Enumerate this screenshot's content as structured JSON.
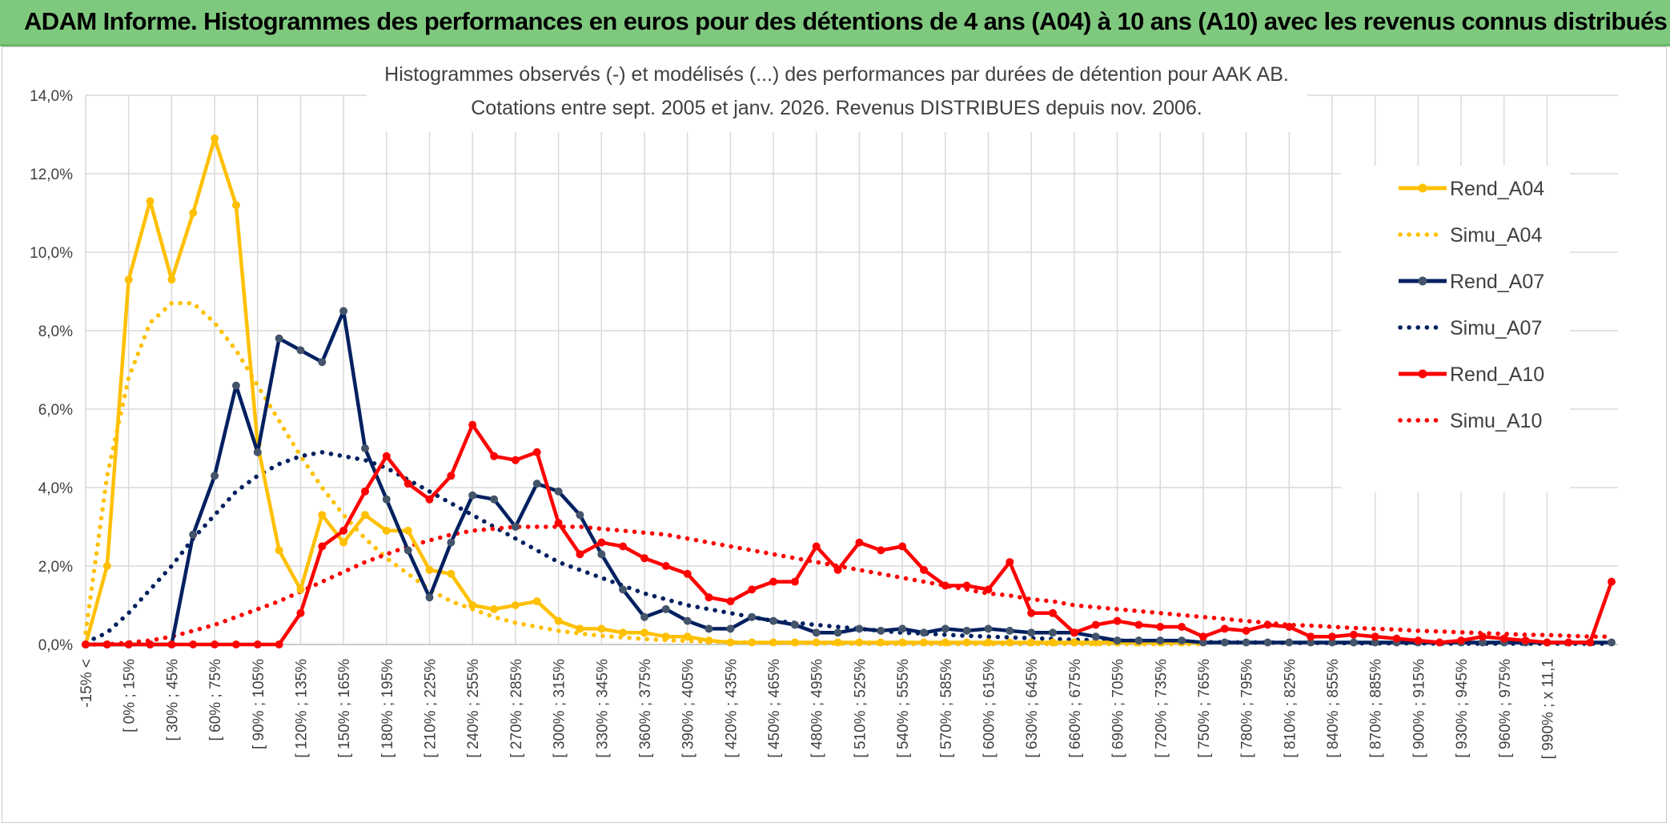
{
  "header": {
    "title": "ADAM Informe. Histogrammes des performances en euros pour des détentions de 4 ans (A04) à 10 ans (A10) avec les revenus connus distribués"
  },
  "chart_data": {
    "type": "line",
    "title_line1": "Histogrammes observés (-) et modélisés (...) des performances par durées de détention pour AAK AB.",
    "title_line2": "Cotations entre sept. 2005 et janv. 2026. Revenus DISTRIBUES depuis nov. 2006.",
    "ylim": [
      0,
      14
    ],
    "yticks": [
      "0,0%",
      "2,0%",
      "4,0%",
      "6,0%",
      "8,0%",
      "10,0%",
      "12,0%",
      "14,0%"
    ],
    "x_count": 72,
    "x_tick_labels": [
      "-15% <",
      "[ 0% ; 15%",
      "[ 30% ; 45%",
      "[ 60% ; 75%",
      "[ 90% ; 105%",
      "[ 120% ; 135%",
      "[ 150% ; 165%",
      "[ 180% ; 195%",
      "[ 210% ; 225%",
      "[ 240% ; 255%",
      "[ 270% ; 285%",
      "[ 300% ; 315%",
      "[ 330% ; 345%",
      "[ 360% ; 375%",
      "[ 390% ; 405%",
      "[ 420% ; 435%",
      "[ 450% ; 465%",
      "[ 480% ; 495%",
      "[ 510% ; 525%",
      "[ 540% ; 555%",
      "[ 570% ; 585%",
      "[ 600% ; 615%",
      "[ 630% ; 645%",
      "[ 660% ; 675%",
      "[ 690% ; 705%",
      "[ 720% ; 735%",
      "[ 750% ; 765%",
      "[ 780% ; 795%",
      "[ 810% ; 825%",
      "[ 840% ; 855%",
      "[ 870% ; 885%",
      "[ 900% ; 915%",
      "[ 930% ; 945%",
      "[ 960% ; 975%",
      "[ 990% ; x 11,1"
    ],
    "legend_position": "right",
    "grid": true,
    "series": [
      {
        "name": "Rend_A04",
        "style": "solid",
        "color": "#ffc000",
        "values": [
          0.0,
          2.0,
          9.3,
          11.3,
          9.3,
          11.0,
          12.9,
          11.2,
          5.1,
          2.4,
          1.4,
          3.3,
          2.6,
          3.3,
          2.9,
          2.9,
          1.9,
          1.8,
          1.0,
          0.9,
          1.0,
          1.1,
          0.6,
          0.4,
          0.4,
          0.3,
          0.3,
          0.2,
          0.2,
          0.1,
          0.05,
          0.05,
          0.05,
          0.05,
          0.05,
          0.05,
          0.05,
          0.05,
          0.05,
          0.05,
          0.05,
          0.05,
          0.05,
          0.05,
          0.05,
          0.05,
          0.05,
          0.05,
          0.05,
          0.05,
          0.05,
          0.05,
          0.05
        ]
      },
      {
        "name": "Simu_A04",
        "style": "dotted",
        "color": "#ffc000",
        "values": [
          0.3,
          4.3,
          6.8,
          8.2,
          8.7,
          8.7,
          8.2,
          7.5,
          6.6,
          5.7,
          4.8,
          4.0,
          3.3,
          2.7,
          2.2,
          1.8,
          1.4,
          1.1,
          0.9,
          0.7,
          0.55,
          0.45,
          0.35,
          0.28,
          0.22,
          0.18,
          0.14,
          0.11,
          0.09,
          0.07,
          0.06,
          0.05,
          0.04,
          0.03,
          0.03,
          0.02,
          0.02,
          0.02,
          0.01,
          0.01,
          0.01,
          0.01,
          0.01,
          0.01,
          0.01,
          0.01,
          0.01,
          0.01,
          0.01,
          0.01,
          0.01,
          0.01,
          0.01
        ]
      },
      {
        "name": "Rend_A07",
        "style": "solid",
        "color": "#002060",
        "values": [
          0.0,
          0.0,
          0.0,
          0.0,
          0.0,
          2.8,
          4.3,
          6.6,
          4.9,
          7.8,
          7.5,
          7.2,
          8.5,
          5.0,
          3.7,
          2.4,
          1.2,
          2.6,
          3.8,
          3.7,
          3.0,
          4.1,
          3.9,
          3.3,
          2.3,
          1.4,
          0.7,
          0.9,
          0.6,
          0.4,
          0.4,
          0.7,
          0.6,
          0.5,
          0.3,
          0.3,
          0.4,
          0.35,
          0.4,
          0.3,
          0.4,
          0.35,
          0.4,
          0.35,
          0.3,
          0.3,
          0.3,
          0.2,
          0.1,
          0.1,
          0.1,
          0.1,
          0.05,
          0.05,
          0.05,
          0.05,
          0.05,
          0.05,
          0.05,
          0.05,
          0.05,
          0.05,
          0.05,
          0.05,
          0.05,
          0.05,
          0.05,
          0.05,
          0.05,
          0.05,
          0.05,
          0.05
        ]
      },
      {
        "name": "Simu_A07",
        "style": "dotted",
        "color": "#002060",
        "values": [
          0.05,
          0.3,
          0.8,
          1.4,
          2.0,
          2.7,
          3.3,
          3.9,
          4.3,
          4.6,
          4.8,
          4.9,
          4.8,
          4.7,
          4.5,
          4.2,
          3.9,
          3.6,
          3.3,
          3.0,
          2.7,
          2.4,
          2.1,
          1.9,
          1.7,
          1.5,
          1.3,
          1.15,
          1.0,
          0.9,
          0.8,
          0.7,
          0.6,
          0.55,
          0.5,
          0.45,
          0.4,
          0.35,
          0.3,
          0.28,
          0.25,
          0.22,
          0.2,
          0.18,
          0.16,
          0.14,
          0.12,
          0.11,
          0.1,
          0.09,
          0.08,
          0.07,
          0.06,
          0.06,
          0.05,
          0.05,
          0.04,
          0.04,
          0.04,
          0.03,
          0.03,
          0.03,
          0.03,
          0.02,
          0.02,
          0.02,
          0.02,
          0.02,
          0.02,
          0.02,
          0.02,
          0.02
        ]
      },
      {
        "name": "Rend_A10",
        "style": "solid",
        "color": "#ff0000",
        "values": [
          0.0,
          0.0,
          0.0,
          0.0,
          0.0,
          0.0,
          0.0,
          0.0,
          0.0,
          0.0,
          0.8,
          2.5,
          2.9,
          3.9,
          4.8,
          4.1,
          3.7,
          4.3,
          5.6,
          4.8,
          4.7,
          4.9,
          3.1,
          2.3,
          2.6,
          2.5,
          2.2,
          2.0,
          1.8,
          1.2,
          1.1,
          1.4,
          1.6,
          1.6,
          2.5,
          1.9,
          2.6,
          2.4,
          2.5,
          1.9,
          1.5,
          1.5,
          1.4,
          2.1,
          0.8,
          0.8,
          0.3,
          0.5,
          0.6,
          0.5,
          0.45,
          0.45,
          0.2,
          0.4,
          0.35,
          0.5,
          0.45,
          0.2,
          0.2,
          0.25,
          0.2,
          0.15,
          0.1,
          0.05,
          0.1,
          0.2,
          0.15,
          0.1,
          0.05,
          0.05,
          0.05,
          1.6
        ]
      },
      {
        "name": "Simu_A10",
        "style": "dotted",
        "color": "#ff0000",
        "values": [
          0.0,
          0.0,
          0.05,
          0.1,
          0.2,
          0.35,
          0.5,
          0.7,
          0.9,
          1.1,
          1.35,
          1.6,
          1.85,
          2.1,
          2.3,
          2.5,
          2.65,
          2.8,
          2.9,
          2.95,
          3.0,
          3.0,
          3.0,
          3.0,
          2.95,
          2.9,
          2.85,
          2.8,
          2.7,
          2.6,
          2.5,
          2.4,
          2.3,
          2.2,
          2.1,
          2.0,
          1.9,
          1.8,
          1.7,
          1.6,
          1.5,
          1.4,
          1.3,
          1.25,
          1.15,
          1.1,
          1.0,
          0.95,
          0.9,
          0.85,
          0.8,
          0.75,
          0.7,
          0.65,
          0.6,
          0.55,
          0.5,
          0.48,
          0.45,
          0.42,
          0.4,
          0.38,
          0.35,
          0.33,
          0.31,
          0.29,
          0.27,
          0.25,
          0.24,
          0.22,
          0.2,
          0.2
        ]
      }
    ]
  }
}
